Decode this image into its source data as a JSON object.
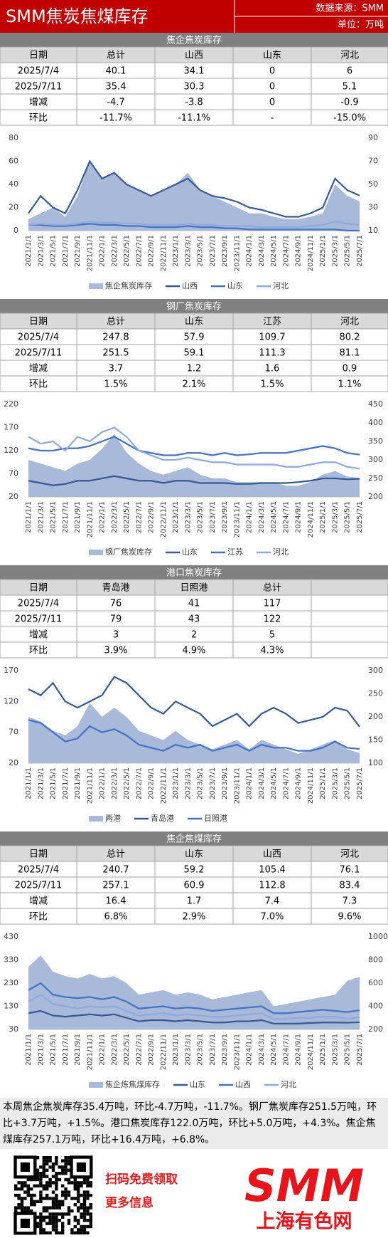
{
  "header": {
    "title": "SMM焦炭焦煤库存",
    "source": "数据来源：SMM",
    "unit": "单位：万吨"
  },
  "sections": [
    {
      "title": "焦企焦炭库存",
      "table": {
        "header": [
          "日期",
          "总计",
          "山西",
          "山东",
          "河北"
        ],
        "rows": [
          [
            "2025/7/4",
            "40.1",
            "34.1",
            "0",
            "6"
          ],
          [
            "2025/7/11",
            "35.4",
            "30.3",
            "0",
            "5.1"
          ],
          [
            "增减",
            "-4.7",
            "-3.8",
            "0",
            "-0.9"
          ],
          [
            "环比",
            "-11.7%",
            "-11.1%",
            "-",
            "-15.0%"
          ]
        ]
      },
      "chart_data": {
        "type": "line",
        "categories": [
          "2021/1/1",
          "2021/3/1",
          "2021/5/1",
          "2021/7/1",
          "2021/9/1",
          "2021/11/1",
          "2022/1/1",
          "2022/3/1",
          "2022/5/1",
          "2022/7/1",
          "2022/9/1",
          "2022/11/1",
          "2023/1/1",
          "2023/3/1",
          "2023/5/1",
          "2023/7/1",
          "2023/9/1",
          "2023/11/1",
          "2024/1/1",
          "2024/3/1",
          "2024/5/1",
          "2024/7/1",
          "2024/9/1",
          "2024/11/1",
          "2025/1/1",
          "2025/3/1",
          "2025/5/1",
          "2025/7/1"
        ],
        "ylim": [
          0,
          80
        ],
        "yticks": [
          0,
          20,
          40,
          60,
          80
        ],
        "y2lim": [
          10,
          90
        ],
        "y2ticks": [
          10,
          30,
          50,
          70,
          90
        ],
        "series": [
          {
            "name": "焦企焦炭库存",
            "color": "#a9b9da",
            "style": "area",
            "axis": "y2",
            "values": [
              20,
              25,
              30,
              22,
              40,
              70,
              55,
              60,
              50,
              45,
              40,
              45,
              50,
              60,
              45,
              40,
              35,
              30,
              25,
              25,
              22,
              20,
              20,
              22,
              25,
              50,
              40,
              35.4
            ]
          },
          {
            "name": "山西",
            "color": "#355a94",
            "values": [
              15,
              30,
              20,
              15,
              35,
              60,
              45,
              50,
              40,
              35,
              30,
              35,
              40,
              45,
              35,
              30,
              28,
              25,
              20,
              18,
              15,
              12,
              12,
              15,
              20,
              45,
              35,
              30.3
            ]
          },
          {
            "name": "山东",
            "color": "#4472c4",
            "values": [
              5,
              5,
              4,
              4,
              5,
              6,
              5,
              5,
              4,
              4,
              3,
              3,
              3,
              4,
              3,
              3,
              2,
              2,
              1,
              1,
              1,
              1,
              1,
              1,
              1,
              1,
              0,
              0
            ]
          },
          {
            "name": "河北",
            "color": "#8faadc",
            "values": [
              5,
              6,
              5,
              5,
              6,
              8,
              7,
              7,
              6,
              6,
              5,
              5,
              5,
              6,
              5,
              5,
              4,
              4,
              4,
              3,
              3,
              3,
              3,
              4,
              5,
              8,
              6,
              5.1
            ]
          }
        ]
      }
    },
    {
      "title": "钢厂焦炭库存",
      "table": {
        "header": [
          "日期",
          "总计",
          "山东",
          "江苏",
          "河北"
        ],
        "rows": [
          [
            "2025/7/4",
            "247.8",
            "57.9",
            "109.7",
            "80.2"
          ],
          [
            "2025/7/11",
            "251.5",
            "59.1",
            "111.3",
            "81.1"
          ],
          [
            "增减",
            "3.7",
            "1.2",
            "1.6",
            "0.9"
          ],
          [
            "环比",
            "1.5%",
            "2.1%",
            "1.5%",
            "1.1%"
          ]
        ]
      },
      "chart_data": {
        "type": "line",
        "categories": [
          "2021/1/1",
          "2021/3/1",
          "2021/5/1",
          "2021/7/1",
          "2021/9/1",
          "2021/11/1",
          "2022/1/1",
          "2022/3/1",
          "2022/5/1",
          "2022/7/1",
          "2022/9/1",
          "2022/11/1",
          "2023/1/1",
          "2023/3/1",
          "2023/5/1",
          "2023/7/1",
          "2023/9/1",
          "2023/11/1",
          "2024/1/1",
          "2024/3/1",
          "2024/5/1",
          "2024/7/1",
          "2024/9/1",
          "2024/11/1",
          "2025/1/1",
          "2025/3/1",
          "2025/5/1",
          "2025/7/1"
        ],
        "ylim": [
          20,
          220
        ],
        "yticks": [
          20,
          70,
          120,
          170,
          220
        ],
        "y2lim": [
          200,
          450
        ],
        "y2ticks": [
          200,
          250,
          300,
          350,
          400,
          450
        ],
        "series": [
          {
            "name": "钢厂焦炭库存",
            "color": "#a9b9da",
            "style": "area",
            "axis": "y2",
            "values": [
              300,
              290,
              280,
              270,
              290,
              300,
              330,
              370,
              320,
              290,
              270,
              260,
              270,
              280,
              260,
              250,
              250,
              240,
              240,
              240,
              240,
              230,
              230,
              240,
              260,
              270,
              255,
              251.5
            ]
          },
          {
            "name": "山东",
            "color": "#355a94",
            "values": [
              55,
              50,
              45,
              48,
              55,
              55,
              60,
              65,
              60,
              55,
              55,
              50,
              55,
              55,
              50,
              50,
              50,
              48,
              48,
              50,
              50,
              50,
              52,
              55,
              60,
              60,
              58,
              59.1
            ]
          },
          {
            "name": "江苏",
            "color": "#4472c4",
            "values": [
              125,
              120,
              120,
              125,
              125,
              130,
              140,
              150,
              135,
              120,
              115,
              110,
              110,
              115,
              115,
              110,
              115,
              110,
              112,
              115,
              115,
              115,
              120,
              125,
              130,
              125,
              115,
              111.3
            ]
          },
          {
            "name": "河北",
            "color": "#8faadc",
            "values": [
              150,
              135,
              140,
              120,
              150,
              140,
              160,
              170,
              150,
              120,
              110,
              100,
              100,
              105,
              100,
              95,
              95,
              90,
              90,
              90,
              90,
              85,
              85,
              90,
              95,
              95,
              85,
              81.1
            ]
          }
        ]
      }
    },
    {
      "title": "港口焦炭库存",
      "table": {
        "header": [
          "日期",
          "青岛港",
          "日照港",
          "总计"
        ],
        "rows": [
          [
            "2025/7/4",
            "76",
            "41",
            "117"
          ],
          [
            "2025/7/11",
            "79",
            "43",
            "122"
          ],
          [
            "增减",
            "3",
            "2",
            "5"
          ],
          [
            "环比",
            "3.9%",
            "4.9%",
            "4.3%"
          ]
        ]
      },
      "chart_data": {
        "type": "line",
        "categories": [
          "2021/1/1",
          "2021/3/1",
          "2021/5/1",
          "2021/7/1",
          "2021/9/1",
          "2021/11/1",
          "2022/1/1",
          "2022/3/1",
          "2022/5/1",
          "2022/7/1",
          "2022/9/1",
          "2022/11/1",
          "2023/1/1",
          "2023/3/1",
          "2023/5/1",
          "2023/7/1",
          "2023/9/1",
          "2023/11/1",
          "2024/1/1",
          "2024/3/1",
          "2024/5/1",
          "2024/7/1",
          "2024/9/1",
          "2024/11/1",
          "2025/1/1",
          "2025/3/1",
          "2025/5/1",
          "2025/7/1"
        ],
        "ylim": [
          20,
          170
        ],
        "yticks": [
          20,
          70,
          120,
          170
        ],
        "y2lim": [
          100,
          300
        ],
        "y2ticks": [
          100,
          150,
          200,
          250,
          300
        ],
        "series": [
          {
            "name": "两港",
            "color": "#a9b9da",
            "style": "area",
            "axis": "y2",
            "values": [
              200,
              190,
              170,
              160,
              180,
              230,
              200,
              220,
              200,
              170,
              160,
              150,
              170,
              150,
              140,
              130,
              140,
              150,
              130,
              150,
              140,
              130,
              120,
              130,
              140,
              150,
              130,
              122
            ]
          },
          {
            "name": "青岛港",
            "color": "#355a94",
            "values": [
              140,
              130,
              150,
              120,
              110,
              120,
              130,
              160,
              150,
              130,
              110,
              100,
              120,
              110,
              100,
              80,
              90,
              100,
              80,
              100,
              110,
              100,
              85,
              90,
              95,
              110,
              105,
              79
            ]
          },
          {
            "name": "日照港",
            "color": "#4472c4",
            "values": [
              90,
              85,
              70,
              55,
              60,
              80,
              70,
              75,
              65,
              50,
              45,
              40,
              50,
              45,
              50,
              40,
              45,
              50,
              40,
              50,
              45,
              45,
              40,
              40,
              45,
              55,
              45,
              43
            ]
          }
        ]
      }
    },
    {
      "title": "焦企焦煤库存",
      "table": {
        "header": [
          "日期",
          "总计",
          "山东",
          "山西",
          "河北"
        ],
        "rows": [
          [
            "2025/7/4",
            "240.7",
            "59.2",
            "105.4",
            "76.1"
          ],
          [
            "2025/7/11",
            "257.1",
            "60.9",
            "112.8",
            "83.4"
          ],
          [
            "增减",
            "16.4",
            "1.7",
            "7.4",
            "7.3"
          ],
          [
            "环比",
            "6.8%",
            "2.9%",
            "7.0%",
            "9.6%"
          ]
        ]
      },
      "chart_data": {
        "type": "line",
        "categories": [
          "2021/1/1",
          "2021/3/1",
          "2021/5/1",
          "2021/7/1",
          "2021/9/1",
          "2021/11/1",
          "2022/1/1",
          "2022/3/1",
          "2022/5/1",
          "2022/7/1",
          "2022/9/1",
          "2022/11/1",
          "2023/1/1",
          "2023/3/1",
          "2023/5/1",
          "2023/7/1",
          "2023/9/1",
          "2023/11/1",
          "2024/1/1",
          "2024/3/1",
          "2024/5/1",
          "2024/7/1",
          "2024/9/1",
          "2024/11/1",
          "2025/1/1",
          "2025/3/1",
          "2025/5/1",
          "2025/7/1"
        ],
        "ylim": [
          30,
          430
        ],
        "yticks": [
          30,
          130,
          230,
          330,
          430
        ],
        "y2lim": [
          200,
          1000
        ],
        "y2ticks": [
          200,
          400,
          600,
          800,
          1000
        ],
        "series": [
          {
            "name": "焦企炼焦煤库存",
            "color": "#a9b9da",
            "style": "area",
            "values": [
              300,
              350,
              280,
              260,
              250,
              270,
              250,
              260,
              230,
              180,
              190,
              200,
              180,
              190,
              180,
              160,
              170,
              180,
              190,
              200,
              130,
              140,
              150,
              160,
              170,
              180,
              240,
              257.1
            ]
          },
          {
            "name": "山东",
            "color": "#355a94",
            "values": [
              100,
              110,
              90,
              85,
              90,
              95,
              90,
              95,
              80,
              65,
              70,
              70,
              65,
              70,
              65,
              60,
              60,
              65,
              65,
              70,
              55,
              55,
              55,
              58,
              60,
              60,
              59,
              60.9
            ]
          },
          {
            "name": "山西",
            "color": "#4472c4",
            "values": [
              200,
              230,
              180,
              170,
              165,
              170,
              160,
              170,
              150,
              120,
              125,
              130,
              120,
              125,
              120,
              110,
              115,
              120,
              125,
              130,
              100,
              100,
              105,
              110,
              115,
              110,
              105,
              112.8
            ]
          },
          {
            "name": "河北",
            "color": "#8faadc",
            "values": [
              150,
              180,
              140,
              130,
              120,
              130,
              125,
              130,
              110,
              90,
              95,
              100,
              90,
              95,
              90,
              85,
              85,
              90,
              95,
              100,
              75,
              75,
              80,
              80,
              85,
              85,
              76,
              83.4
            ]
          }
        ]
      }
    }
  ],
  "summary": "本周焦企焦炭库存35.4万吨，环比-4.7万吨，-11.7%。钢厂焦炭库存251.5万吨，环比+3.7万吨，+1.5%。港口焦炭库存122.0万吨，环比+5.0万吨，+4.3%。焦企焦煤库存257.1万吨，环比+16.4万吨，+6.8%。",
  "footer": {
    "cta1": "扫码免费领取",
    "cta2": "更多信息",
    "logo": "SMM",
    "brand": "上海有色网"
  }
}
